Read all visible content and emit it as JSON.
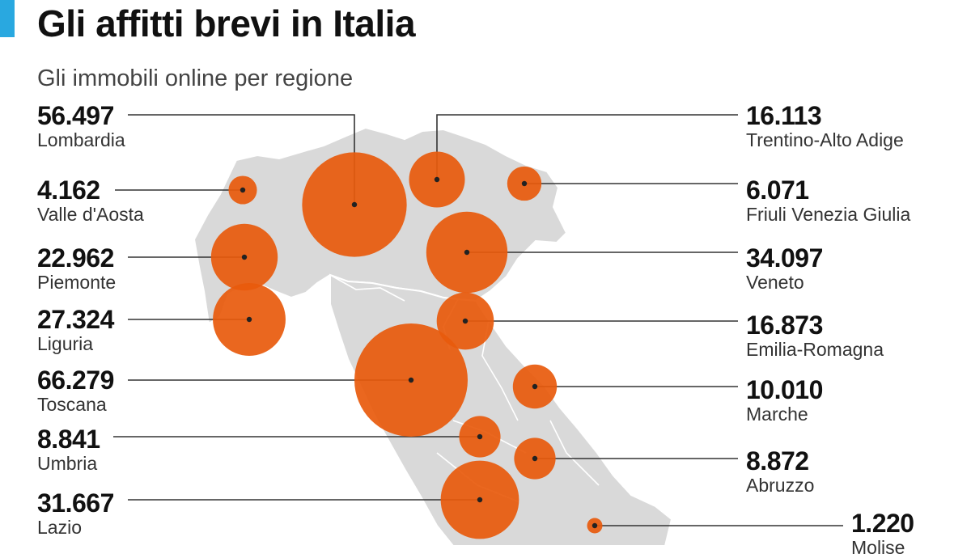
{
  "title": "Gli affitti brevi in Italia",
  "subtitle": "Gli immobili online per regione",
  "colors": {
    "accent": "#29a8e0",
    "bubble": "#e85a0c",
    "map_fill": "#d9d9d9",
    "map_border": "#ffffff",
    "leader": "#333333"
  },
  "regions": [
    {
      "id": "lombardia",
      "name": "Lombardia",
      "value_label": "56.497",
      "value": 56497
    },
    {
      "id": "valle",
      "name": "Valle d'Aosta",
      "value_label": "4.162",
      "value": 4162
    },
    {
      "id": "piemonte",
      "name": "Piemonte",
      "value_label": "22.962",
      "value": 22962
    },
    {
      "id": "liguria",
      "name": "Liguria",
      "value_label": "27.324",
      "value": 27324
    },
    {
      "id": "toscana",
      "name": "Toscana",
      "value_label": "66.279",
      "value": 66279
    },
    {
      "id": "umbria",
      "name": "Umbria",
      "value_label": "8.841",
      "value": 8841
    },
    {
      "id": "lazio",
      "name": "Lazio",
      "value_label": "31.667",
      "value": 31667
    },
    {
      "id": "trentino",
      "name": "Trentino-Alto Adige",
      "value_label": "16.113",
      "value": 16113
    },
    {
      "id": "friuli",
      "name": "Friuli Venezia Giulia",
      "value_label": "6.071",
      "value": 6071
    },
    {
      "id": "veneto",
      "name": "Veneto",
      "value_label": "34.097",
      "value": 34097
    },
    {
      "id": "emilia",
      "name": "Emilia-Romagna",
      "value_label": "16.873",
      "value": 16873
    },
    {
      "id": "marche",
      "name": "Marche",
      "value_label": "10.010",
      "value": 10010
    },
    {
      "id": "abruzzo",
      "name": "Abruzzo",
      "value_label": "8.872",
      "value": 8872
    },
    {
      "id": "molise",
      "name": "Molise",
      "value_label": "1.220",
      "value": 1220
    }
  ]
}
